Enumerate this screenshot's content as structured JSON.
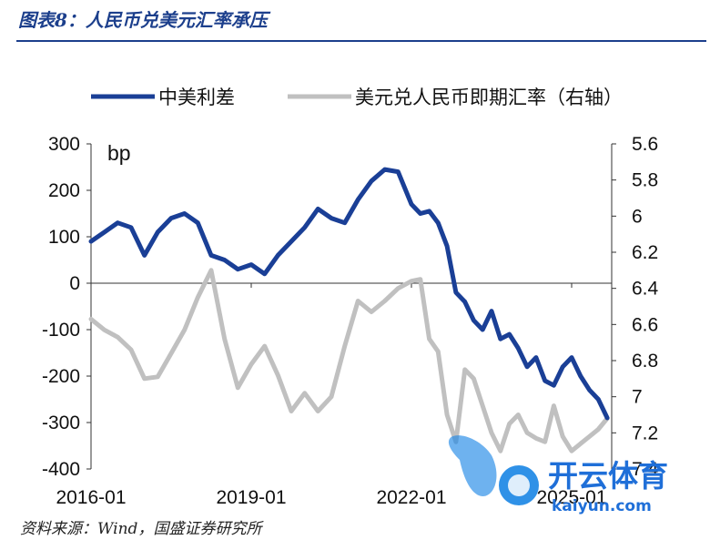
{
  "figure": {
    "title": "图表8：人民币兑美元汇率承压",
    "source": "资料来源：Wind，国盛证券研究所"
  },
  "watermark": {
    "brand": "开云体育",
    "url": "kaiyun.com"
  },
  "chart_data": {
    "type": "line",
    "title": "图表8：人民币兑美元汇率承压",
    "unit_label": "bp",
    "legend_position": "top",
    "grid": false,
    "x_range": [
      "2016-01",
      "2025-10"
    ],
    "x_ticks": [
      "2016-01",
      "2019-01",
      "2022-01",
      "2025-01"
    ],
    "y_left": {
      "lim": [
        -400,
        300
      ],
      "ticks": [
        300,
        200,
        100,
        0,
        -100,
        -200,
        -300,
        -400
      ]
    },
    "y_right": {
      "lim": [
        7.4,
        5.6
      ],
      "inverted": true,
      "ticks": [
        "5.6",
        "5.8",
        "6",
        "6.2",
        "6.4",
        "6.6",
        "6.8",
        "7",
        "7.2",
        "7.4"
      ]
    },
    "series": [
      {
        "name": "中美利差",
        "axis": "left",
        "color": "#1a3f96",
        "x": [
          "2016-01",
          "2016-04",
          "2016-07",
          "2016-10",
          "2017-01",
          "2017-04",
          "2017-07",
          "2017-10",
          "2018-01",
          "2018-04",
          "2018-07",
          "2018-10",
          "2019-01",
          "2019-04",
          "2019-07",
          "2019-10",
          "2020-01",
          "2020-04",
          "2020-07",
          "2020-10",
          "2021-01",
          "2021-04",
          "2021-07",
          "2021-10",
          "2022-01",
          "2022-03",
          "2022-05",
          "2022-07",
          "2022-09",
          "2022-11",
          "2023-01",
          "2023-03",
          "2023-05",
          "2023-07",
          "2023-09",
          "2023-11",
          "2024-01",
          "2024-03",
          "2024-05",
          "2024-07",
          "2024-09",
          "2024-11",
          "2025-01",
          "2025-03",
          "2025-05",
          "2025-07",
          "2025-09"
        ],
        "values": [
          90,
          110,
          130,
          120,
          60,
          110,
          140,
          150,
          130,
          60,
          50,
          30,
          40,
          20,
          60,
          90,
          120,
          160,
          140,
          130,
          180,
          220,
          245,
          240,
          170,
          150,
          155,
          130,
          80,
          -20,
          -40,
          -80,
          -100,
          -60,
          -120,
          -110,
          -140,
          -180,
          -160,
          -210,
          -220,
          -180,
          -160,
          -200,
          -230,
          -250,
          -290
        ]
      },
      {
        "name": "美元兑人民币即期汇率（右轴）",
        "axis": "right",
        "color": "#c0c0c0",
        "x": [
          "2016-01",
          "2016-04",
          "2016-07",
          "2016-10",
          "2017-01",
          "2017-04",
          "2017-07",
          "2017-10",
          "2018-01",
          "2018-04",
          "2018-07",
          "2018-10",
          "2019-01",
          "2019-04",
          "2019-07",
          "2019-10",
          "2020-01",
          "2020-04",
          "2020-07",
          "2020-10",
          "2021-01",
          "2021-04",
          "2021-07",
          "2021-10",
          "2022-01",
          "2022-03",
          "2022-05",
          "2022-07",
          "2022-09",
          "2022-11",
          "2023-01",
          "2023-03",
          "2023-05",
          "2023-07",
          "2023-09",
          "2023-11",
          "2024-01",
          "2024-03",
          "2024-05",
          "2024-07",
          "2024-09",
          "2024-11",
          "2025-01",
          "2025-03",
          "2025-05",
          "2025-07",
          "2025-09"
        ],
        "values": [
          6.57,
          6.63,
          6.67,
          6.74,
          6.9,
          6.89,
          6.76,
          6.63,
          6.45,
          6.3,
          6.68,
          6.95,
          6.82,
          6.72,
          6.88,
          7.08,
          6.98,
          7.08,
          7.0,
          6.72,
          6.47,
          6.53,
          6.47,
          6.4,
          6.36,
          6.35,
          6.68,
          6.75,
          7.1,
          7.25,
          6.85,
          6.9,
          7.05,
          7.2,
          7.3,
          7.15,
          7.1,
          7.2,
          7.23,
          7.25,
          7.05,
          7.22,
          7.3,
          7.26,
          7.22,
          7.18,
          7.12
        ]
      }
    ]
  }
}
